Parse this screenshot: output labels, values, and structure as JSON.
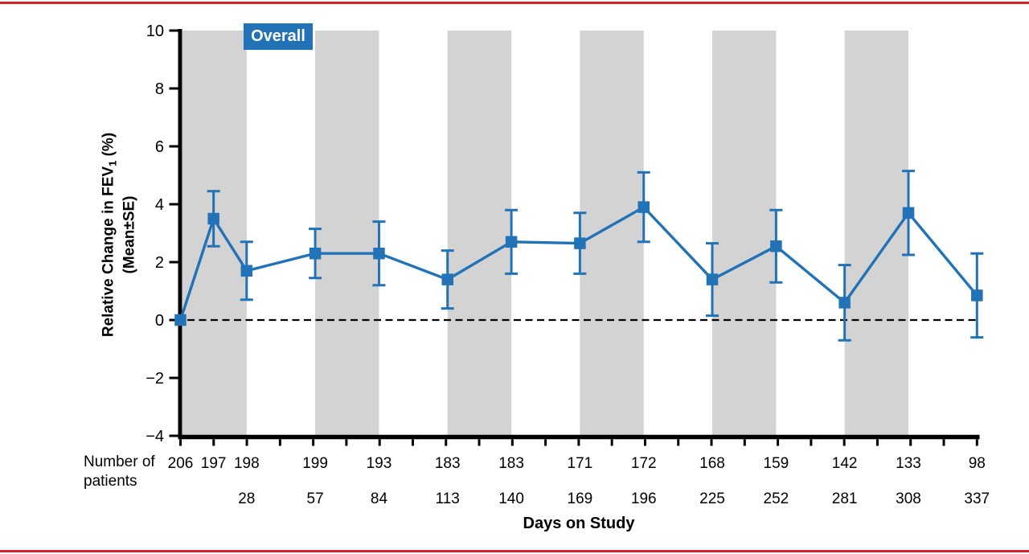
{
  "page": {
    "background": "#FFFFFF",
    "top_rule_color": "#D2232A",
    "bottom_rule_color": "#D2232A"
  },
  "chart_data": {
    "type": "line",
    "legend": {
      "label": "Overall",
      "position": "top-left-inside",
      "bg": "#2272B8",
      "text_color": "#FFFFFF"
    },
    "ylabel": {
      "pre": "Relative Change in FEV",
      "sub": "1",
      "post": " (%)",
      "line2": "(Mean±SE)"
    },
    "xlabel": "Days on Study",
    "patients_row_label": [
      "Number of",
      "patients"
    ],
    "y_axis": {
      "min": -4,
      "max": 10,
      "tick_step": 2,
      "tick_values": [
        10,
        8,
        6,
        4,
        2,
        0,
        -2,
        -4
      ],
      "tick_labels": [
        "10",
        "8",
        "6",
        "4",
        "2",
        "0",
        "−2",
        "−4"
      ]
    },
    "x_axis": {
      "day_min": 0,
      "day_max": 337,
      "minor_tick_count": 25
    },
    "zero_line": {
      "style": "dashed",
      "y": 0,
      "color": "#000000"
    },
    "band_color": "#D3D3D3",
    "shaded_bands_days": [
      [
        0,
        28
      ],
      [
        57,
        84
      ],
      [
        113,
        140
      ],
      [
        169,
        196
      ],
      [
        225,
        252
      ],
      [
        281,
        308
      ]
    ],
    "grid": "off",
    "series": [
      {
        "name": "Overall",
        "color": "#2272B8",
        "marker": "square",
        "points": [
          {
            "day": 0,
            "day_label": "",
            "mean": 0.0,
            "se": 0.0,
            "patients": "206"
          },
          {
            "day": 14,
            "day_label": "",
            "mean": 3.5,
            "se": 0.95,
            "patients": "197"
          },
          {
            "day": 28,
            "day_label": "28",
            "mean": 1.7,
            "se": 1.0,
            "patients": "198"
          },
          {
            "day": 57,
            "day_label": "57",
            "mean": 2.3,
            "se": 0.85,
            "patients": "199"
          },
          {
            "day": 84,
            "day_label": "84",
            "mean": 2.3,
            "se": 1.1,
            "patients": "193"
          },
          {
            "day": 113,
            "day_label": "113",
            "mean": 1.4,
            "se": 1.0,
            "patients": "183"
          },
          {
            "day": 140,
            "day_label": "140",
            "mean": 2.7,
            "se": 1.1,
            "patients": "183"
          },
          {
            "day": 169,
            "day_label": "169",
            "mean": 2.65,
            "se": 1.05,
            "patients": "171"
          },
          {
            "day": 196,
            "day_label": "196",
            "mean": 3.9,
            "se": 1.2,
            "patients": "172"
          },
          {
            "day": 225,
            "day_label": "225",
            "mean": 1.4,
            "se": 1.25,
            "patients": "168"
          },
          {
            "day": 252,
            "day_label": "252",
            "mean": 2.55,
            "se": 1.25,
            "patients": "159"
          },
          {
            "day": 281,
            "day_label": "281",
            "mean": 0.6,
            "se": 1.3,
            "patients": "142"
          },
          {
            "day": 308,
            "day_label": "308",
            "mean": 3.7,
            "se": 1.45,
            "patients": "133"
          },
          {
            "day": 337,
            "day_label": "337",
            "mean": 0.85,
            "se": 1.45,
            "patients": "98"
          }
        ]
      }
    ]
  }
}
